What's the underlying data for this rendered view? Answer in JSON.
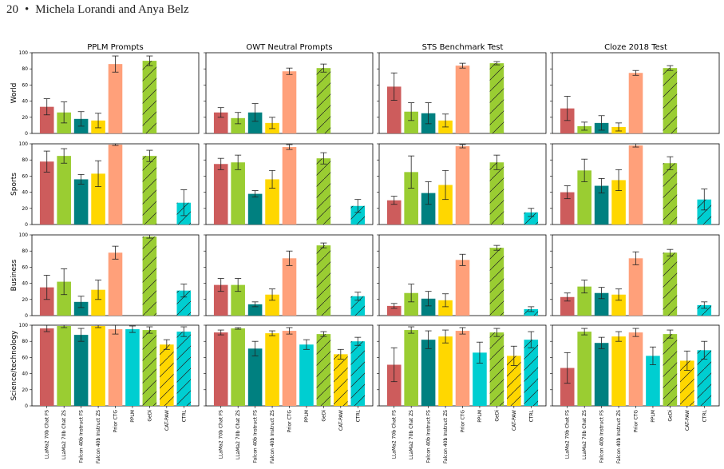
{
  "header": {
    "page_number": "20",
    "bullet": "•",
    "authors": "Michela Lorandi and Anya Belz"
  },
  "colors": {
    "LLaMa2 70b Chat FS": "#cd5c5c",
    "LLaMa2 70b Chat ZS": "#9acd32",
    "Falcon 40b Instruct FS": "#008080",
    "Falcon 40b Instruct ZS": "#ffd700",
    "Prior CTG": "#ffa07a",
    "PPLM": "#00ced1",
    "GeDi": "#9acd32",
    "CAT-PAW": "#ffd700",
    "CTRL": "#00ced1"
  },
  "hatched": [
    "GeDi",
    "CAT-PAW",
    "CTRL"
  ],
  "chart_data": {
    "type": "bar",
    "columns": [
      "PPLM Prompts",
      "OWT Neutral Prompts",
      "STS Benchmark Test",
      "Cloze 2018 Test"
    ],
    "rows": [
      "World",
      "Sports",
      "Business",
      "Science/technology"
    ],
    "categories": [
      "LLaMa2 70b Chat FS",
      "LLaMa2 70b Chat ZS",
      "Falcon 40b Instruct FS",
      "Falcon 40b Instruct ZS",
      "Prior CTG",
      "PPLM",
      "GeDi",
      "CAT-PAW",
      "CTRL"
    ],
    "ylim": [
      0,
      100
    ],
    "yticks": [
      0,
      20,
      40,
      60,
      80,
      100
    ],
    "values": [
      [
        [
          33,
          26,
          18,
          16,
          86,
          0,
          90,
          0,
          0
        ],
        [
          26,
          19,
          26,
          13,
          77,
          0,
          81,
          0,
          0
        ],
        [
          58,
          27,
          25,
          16,
          84,
          0,
          87,
          0,
          0
        ],
        [
          31,
          9,
          13,
          8,
          75,
          0,
          81,
          0,
          0
        ]
      ],
      [
        [
          78,
          85,
          56,
          63,
          99,
          0,
          85,
          0,
          27
        ],
        [
          75,
          77,
          38,
          56,
          96,
          0,
          82,
          0,
          23
        ],
        [
          30,
          65,
          39,
          49,
          97,
          0,
          77,
          0,
          15
        ],
        [
          40,
          67,
          48,
          55,
          98,
          0,
          76,
          0,
          31
        ]
      ],
      [
        [
          35,
          42,
          17,
          32,
          78,
          0,
          98,
          0,
          31
        ],
        [
          38,
          38,
          14,
          26,
          71,
          0,
          87,
          0,
          24
        ],
        [
          12,
          28,
          21,
          19,
          69,
          0,
          84,
          0,
          8
        ],
        [
          23,
          36,
          28,
          26,
          71,
          0,
          78,
          0,
          13
        ]
      ],
      [
        [
          96,
          99,
          88,
          99,
          95,
          95,
          94,
          76,
          92
        ],
        [
          91,
          96,
          71,
          90,
          93,
          76,
          89,
          64,
          80
        ],
        [
          51,
          94,
          82,
          86,
          93,
          66,
          91,
          62,
          82
        ],
        [
          47,
          92,
          78,
          86,
          91,
          62,
          89,
          56,
          69
        ]
      ]
    ],
    "errors": [
      [
        [
          10,
          13,
          9,
          9,
          10,
          0,
          6,
          0,
          0
        ],
        [
          6,
          7,
          11,
          7,
          4,
          0,
          5,
          0,
          0
        ],
        [
          17,
          11,
          13,
          8,
          3,
          0,
          2,
          0,
          0
        ],
        [
          15,
          5,
          9,
          5,
          3,
          0,
          3,
          0,
          0
        ]
      ],
      [
        [
          13,
          9,
          6,
          16,
          1,
          0,
          7,
          0,
          16
        ],
        [
          7,
          9,
          4,
          11,
          3,
          0,
          7,
          0,
          8
        ],
        [
          5,
          20,
          14,
          18,
          2,
          0,
          9,
          0,
          5
        ],
        [
          8,
          14,
          9,
          13,
          2,
          0,
          8,
          0,
          13
        ]
      ],
      [
        [
          15,
          16,
          7,
          12,
          8,
          0,
          2,
          0,
          8
        ],
        [
          8,
          8,
          3,
          7,
          9,
          0,
          3,
          0,
          5
        ],
        [
          3,
          11,
          9,
          8,
          7,
          0,
          3,
          0,
          3
        ],
        [
          5,
          8,
          7,
          7,
          8,
          0,
          4,
          0,
          4
        ]
      ],
      [
        [
          4,
          2,
          8,
          2,
          6,
          4,
          4,
          6,
          6
        ],
        [
          3,
          1,
          9,
          3,
          4,
          6,
          3,
          6,
          5
        ],
        [
          21,
          4,
          11,
          8,
          4,
          13,
          5,
          12,
          10
        ],
        [
          19,
          4,
          7,
          6,
          5,
          11,
          5,
          12,
          11
        ]
      ]
    ],
    "grid": false
  }
}
